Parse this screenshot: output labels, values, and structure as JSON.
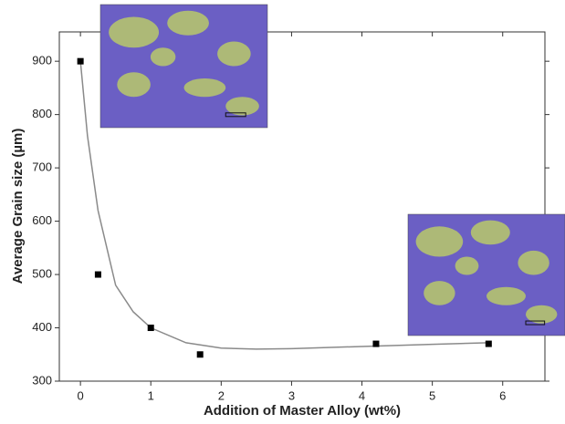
{
  "chart_data": {
    "type": "scatter",
    "xlabel": "Addition of Master Alloy (wt%)",
    "ylabel": "Average Grain size (µm)",
    "xlim": [
      -0.3,
      6.6
    ],
    "ylim": [
      300,
      955
    ],
    "xticks": [
      0,
      1,
      2,
      3,
      4,
      5,
      6
    ],
    "yticks": [
      300,
      400,
      500,
      600,
      700,
      800,
      900
    ],
    "series": [
      {
        "style": "line",
        "color": "#8a8a8a",
        "x": [
          0,
          0.1,
          0.25,
          0.5,
          0.75,
          1,
          1.5,
          2,
          2.5,
          3,
          4,
          5,
          5.8
        ],
        "values": [
          900,
          760,
          620,
          480,
          430,
          400,
          372,
          362,
          360,
          361,
          365,
          369,
          372
        ]
      },
      {
        "style": "marker",
        "color": "#000000",
        "x": [
          0,
          0.25,
          1,
          1.7,
          4.2,
          5.8
        ],
        "values": [
          900,
          500,
          400,
          350,
          370,
          370
        ]
      }
    ]
  }
}
